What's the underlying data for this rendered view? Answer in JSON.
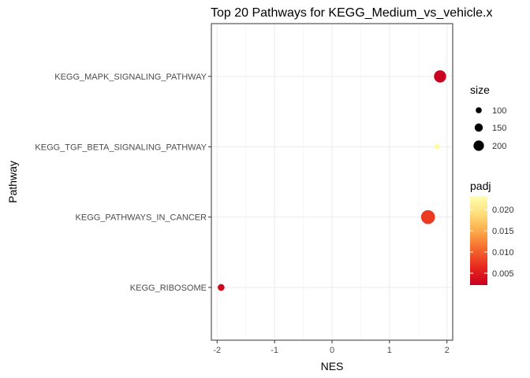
{
  "chart_data": {
    "type": "scatter",
    "title": "Top 20 Pathways for  KEGG_Medium_vs_vehicle.x",
    "xlabel": "NES",
    "ylabel": "Pathway",
    "xlim": [
      -2.1,
      2.1
    ],
    "x_ticks": [
      -2,
      -1,
      0,
      1,
      2
    ],
    "x_tick_labels": [
      "-2",
      "-1",
      "0",
      "1",
      "2"
    ],
    "categories": [
      "KEGG_RIBOSOME",
      "KEGG_PATHWAYS_IN_CANCER",
      "KEGG_TGF_BETA_SIGNALING_PATHWAY",
      "KEGG_MAPK_SIGNALING_PATHWAY"
    ],
    "points": [
      {
        "pathway": "KEGG_RIBOSOME",
        "NES": -1.93,
        "size": 80,
        "padj": 0.003
      },
      {
        "pathway": "KEGG_PATHWAYS_IN_CANCER",
        "NES": 1.67,
        "size": 200,
        "padj": 0.0075
      },
      {
        "pathway": "KEGG_TGF_BETA_SIGNALING_PATHWAY",
        "NES": 1.83,
        "size": 60,
        "padj": 0.0225
      },
      {
        "pathway": "KEGG_MAPK_SIGNALING_PATHWAY",
        "NES": 1.88,
        "size": 170,
        "padj": 0.0025
      }
    ],
    "grid": true,
    "legend_position": "right",
    "legends": {
      "size": {
        "title": "size",
        "values": [
          100,
          150,
          200
        ],
        "labels": [
          "100",
          "150",
          "200"
        ]
      },
      "padj": {
        "title": "padj",
        "range": [
          0.0022,
          0.0232
        ],
        "ticks": [
          0.005,
          0.01,
          0.015,
          0.02
        ],
        "tick_labels": [
          "0.005",
          "0.010",
          "0.015",
          "0.020"
        ],
        "colors": [
          "#C7001F",
          "#E8281E",
          "#F4672E",
          "#FCA848",
          "#FEDE7A",
          "#FFFFB2"
        ]
      }
    }
  }
}
